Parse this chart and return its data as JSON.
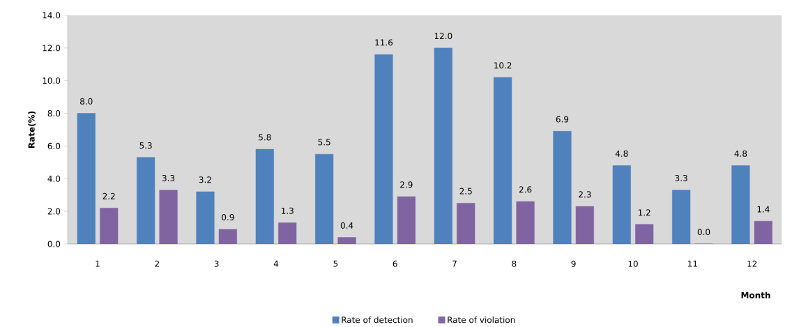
{
  "chart_data": {
    "type": "bar",
    "ylabel": "Rate(%)",
    "xlabel": "Month",
    "categories": [
      "1",
      "2",
      "3",
      "4",
      "5",
      "6",
      "7",
      "8",
      "9",
      "10",
      "11",
      "12"
    ],
    "series": [
      {
        "name": "Rate of detection",
        "color": "#4f81bd",
        "values": [
          8.0,
          5.3,
          3.2,
          5.8,
          5.5,
          11.6,
          12.0,
          10.2,
          6.9,
          4.8,
          3.3,
          4.8
        ],
        "value_labels": [
          "8.0",
          "5.3",
          "3.2",
          "5.8",
          "5.5",
          "11.6",
          "12.0",
          "10.2",
          "6.9",
          "4.8",
          "3.3",
          "4.8"
        ]
      },
      {
        "name": "Rate of violation",
        "color": "#8064a2",
        "values": [
          2.2,
          3.3,
          0.9,
          1.3,
          0.4,
          2.9,
          2.5,
          2.6,
          2.3,
          1.2,
          0.0,
          1.4
        ],
        "value_labels": [
          "2.2",
          "3.3",
          "0.9",
          "1.3",
          "0.4",
          "2.9",
          "2.5",
          "2.6",
          "2.3",
          "1.2",
          "0.0",
          "1.4"
        ]
      }
    ],
    "ylim": [
      0,
      14
    ],
    "yticks": [
      {
        "value": 0,
        "label": "0.0"
      },
      {
        "value": 2,
        "label": "2.0"
      },
      {
        "value": 4,
        "label": "4.0"
      },
      {
        "value": 6,
        "label": "6.0"
      },
      {
        "value": 8,
        "label": "8.0"
      },
      {
        "value": 10,
        "label": "10.0"
      },
      {
        "value": 12,
        "label": "12.0"
      },
      {
        "value": 14,
        "label": "14.0"
      }
    ],
    "legend": "bottom"
  }
}
